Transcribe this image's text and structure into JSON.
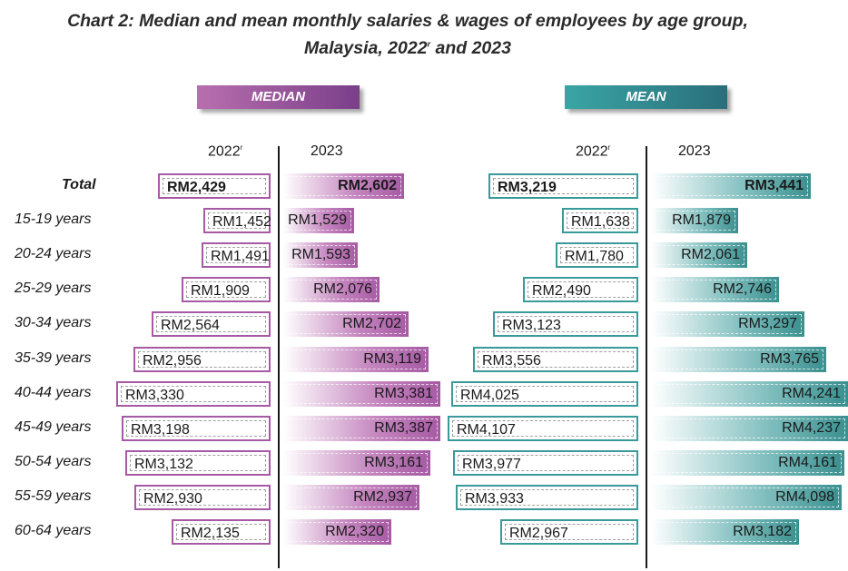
{
  "title": {
    "line1": "Chart 2: Median and mean monthly salaries & wages of employees by age group,",
    "line2_prefix": "Malaysia, 2022",
    "line2_sup": "r",
    "line2_suffix": " and 2023"
  },
  "badges": {
    "median": "MEDIAN",
    "mean": "MEAN"
  },
  "column_headers": {
    "year_2022": "2022",
    "year_2022_sup": "r",
    "year_2023": "2023"
  },
  "colors": {
    "median_accent": "#a65aa3",
    "mean_accent": "#3a9a9a"
  },
  "chart_data": {
    "type": "bar",
    "title": "Median and mean monthly salaries & wages of employees by age group, Malaysia, 2022r and 2023",
    "unit": "RM",
    "categories": [
      "Total",
      "15-19 years",
      "20-24 years",
      "25-29 years",
      "30-34 years",
      "35-39 years",
      "40-44 years",
      "45-49 years",
      "50-54 years",
      "55-59 years",
      "60-64 years"
    ],
    "series": [
      {
        "name": "Median 2022r",
        "values": [
          2429,
          1452,
          1491,
          1909,
          2564,
          2956,
          3330,
          3198,
          3132,
          2930,
          2135
        ],
        "labels": [
          "RM2,429",
          "RM1,452",
          "RM1,491",
          "RM1,909",
          "RM2,564",
          "RM2,956",
          "RM3,330",
          "RM3,198",
          "RM3,132",
          "RM2,930",
          "RM2,135"
        ]
      },
      {
        "name": "Median 2023",
        "values": [
          2602,
          1529,
          1593,
          2076,
          2702,
          3119,
          3381,
          3387,
          3161,
          2937,
          2320
        ],
        "labels": [
          "RM2,602",
          "RM1,529",
          "RM1,593",
          "RM2,076",
          "RM2,702",
          "RM3,119",
          "RM3,381",
          "RM3,387",
          "RM3,161",
          "RM2,937",
          "RM2,320"
        ]
      },
      {
        "name": "Mean 2022r",
        "values": [
          3219,
          1638,
          1780,
          2490,
          3123,
          3556,
          4025,
          4107,
          3977,
          3933,
          2967
        ],
        "labels": [
          "RM3,219",
          "RM1,638",
          "RM1,780",
          "RM2,490",
          "RM3,123",
          "RM3,556",
          "RM4,025",
          "RM4,107",
          "RM3,977",
          "RM3,933",
          "RM2,967"
        ]
      },
      {
        "name": "Mean 2023",
        "values": [
          3441,
          1879,
          2061,
          2746,
          3297,
          3765,
          4241,
          4237,
          4161,
          4098,
          3182
        ],
        "labels": [
          "RM3,441",
          "RM1,879",
          "RM2,061",
          "RM2,746",
          "RM3,297",
          "RM3,765",
          "RM4,241",
          "RM4,237",
          "RM4,161",
          "RM4,098",
          "RM3,182"
        ]
      }
    ]
  }
}
